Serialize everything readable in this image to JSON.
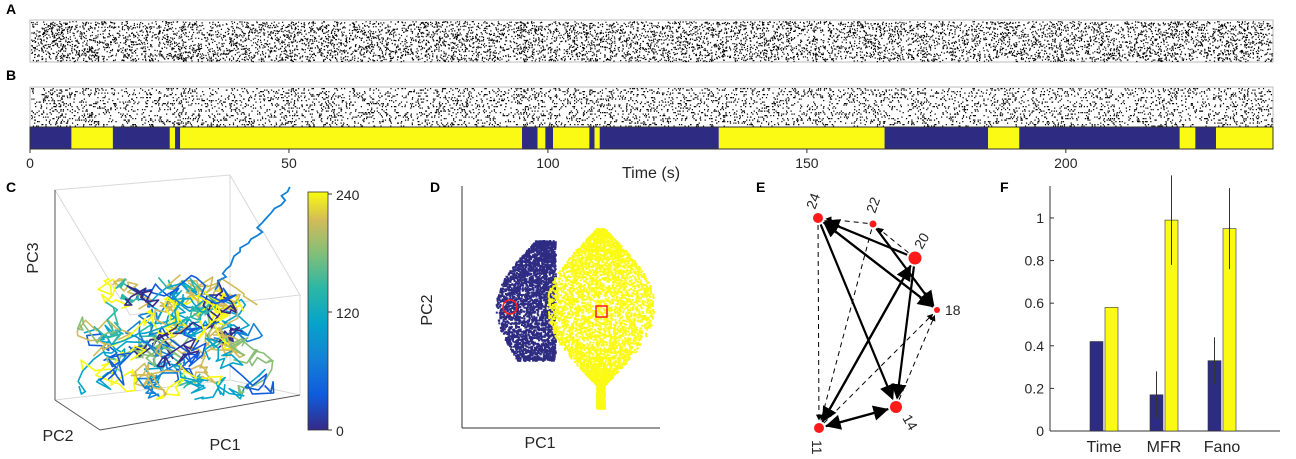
{
  "colors": {
    "blue": "#2e2c82",
    "yellow": "#fafa14",
    "red": "#ff1a1a",
    "black": "#000000"
  },
  "panels": {
    "a": "A",
    "b": "B",
    "c": "C",
    "d": "D",
    "e": "E",
    "f": "F"
  },
  "chart_data": [
    {
      "id": "A",
      "type": "raster"
    },
    {
      "id": "B",
      "type": "raster",
      "xlabel": "Time (s)",
      "xlim": [
        0,
        240
      ],
      "xticks": [
        "0",
        "50",
        "100",
        "150",
        "200"
      ],
      "states": [
        {
          "start": 0,
          "end": 8,
          "state": "blue"
        },
        {
          "start": 8,
          "end": 16,
          "state": "yellow"
        },
        {
          "start": 16,
          "end": 27,
          "state": "blue"
        },
        {
          "start": 27,
          "end": 28,
          "state": "yellow"
        },
        {
          "start": 28,
          "end": 29,
          "state": "blue"
        },
        {
          "start": 29,
          "end": 95,
          "state": "yellow"
        },
        {
          "start": 95,
          "end": 98,
          "state": "blue"
        },
        {
          "start": 98,
          "end": 99.5,
          "state": "yellow"
        },
        {
          "start": 99.5,
          "end": 101,
          "state": "blue"
        },
        {
          "start": 101,
          "end": 108,
          "state": "yellow"
        },
        {
          "start": 108,
          "end": 109,
          "state": "blue"
        },
        {
          "start": 109,
          "end": 110,
          "state": "yellow"
        },
        {
          "start": 110,
          "end": 133,
          "state": "blue"
        },
        {
          "start": 133,
          "end": 165,
          "state": "yellow"
        },
        {
          "start": 165,
          "end": 185,
          "state": "blue"
        },
        {
          "start": 185,
          "end": 191,
          "state": "yellow"
        },
        {
          "start": 191,
          "end": 222,
          "state": "blue"
        },
        {
          "start": 222,
          "end": 225,
          "state": "yellow"
        },
        {
          "start": 225,
          "end": 229,
          "state": "blue"
        },
        {
          "start": 229,
          "end": 240,
          "state": "yellow"
        }
      ]
    },
    {
      "id": "C",
      "type": "line",
      "xlabel": "PC1",
      "ylabel": "PC2",
      "zlabel": "PC3",
      "colorbar": {
        "ticks": [
          "240",
          "120",
          "0"
        ],
        "range": [
          0,
          240
        ]
      }
    },
    {
      "id": "D",
      "type": "scatter",
      "xlabel": "PC1",
      "ylabel": "PC2",
      "series": [
        {
          "state": "blue"
        },
        {
          "state": "yellow"
        }
      ]
    },
    {
      "id": "E",
      "type": "network",
      "nodes": [
        {
          "label": "24"
        },
        {
          "label": "22"
        },
        {
          "label": "20"
        },
        {
          "label": "18"
        },
        {
          "label": "14"
        },
        {
          "label": "11"
        }
      ],
      "edges_solid": [
        [
          "24",
          "18"
        ],
        [
          "18",
          "24"
        ],
        [
          "20",
          "11"
        ],
        [
          "11",
          "20"
        ],
        [
          "20",
          "14"
        ],
        [
          "14",
          "11"
        ],
        [
          "11",
          "14"
        ],
        [
          "24",
          "14"
        ],
        [
          "22",
          "18"
        ],
        [
          "20",
          "24"
        ]
      ],
      "edges_dashed": [
        [
          "22",
          "24"
        ],
        [
          "22",
          "11"
        ],
        [
          "24",
          "11"
        ],
        [
          "14",
          "18"
        ],
        [
          "11",
          "18"
        ],
        [
          "20",
          "22"
        ]
      ]
    },
    {
      "id": "F",
      "type": "bar",
      "categories": [
        "Time",
        "MFR",
        "Fano"
      ],
      "series": [
        {
          "state": "blue",
          "values": [
            0.42,
            0.17,
            0.33
          ],
          "errors": [
            0,
            0.11,
            0.11
          ]
        },
        {
          "state": "yellow",
          "values": [
            0.58,
            0.99,
            0.95
          ],
          "errors": [
            0,
            0.21,
            0.19
          ]
        }
      ],
      "ylim": [
        0,
        1.15
      ],
      "yticks": [
        "0",
        "0.2",
        "0.4",
        "0.6",
        "0.8",
        "1"
      ]
    }
  ]
}
